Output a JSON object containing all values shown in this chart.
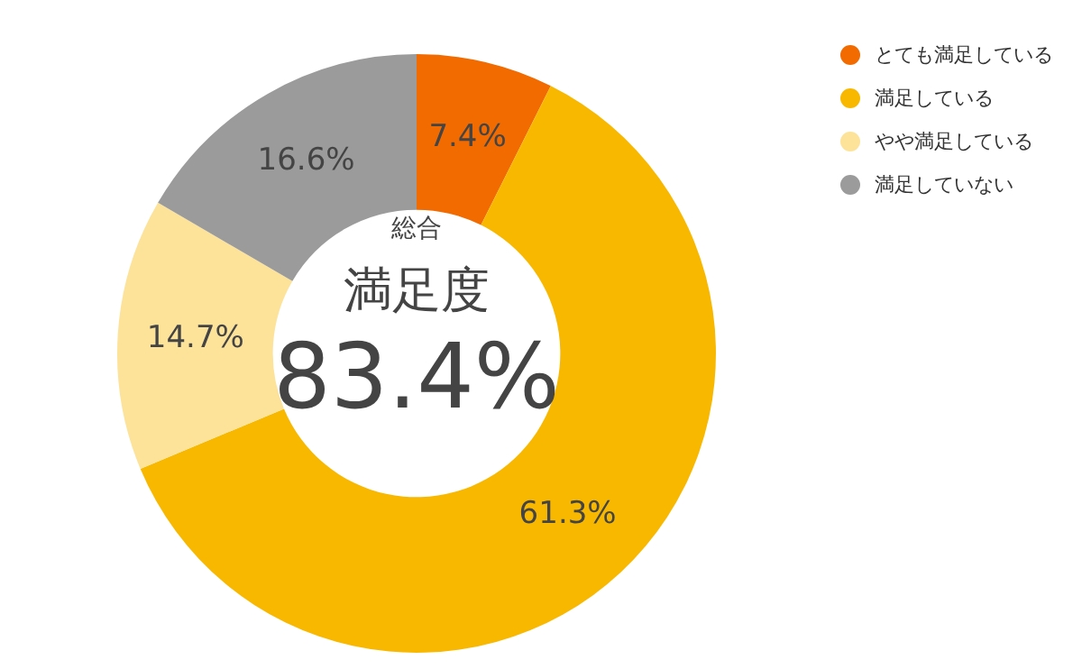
{
  "chart_data": {
    "type": "donut",
    "categories": [
      "とても満足している",
      "満足している",
      "やや満足している",
      "満足していない"
    ],
    "values": [
      7.4,
      61.3,
      14.7,
      16.6
    ],
    "colors": [
      "#f26b00",
      "#f9b800",
      "#fde39a",
      "#9b9b9b"
    ],
    "value_labels": [
      "7.4%",
      "61.3%",
      "14.7%",
      "16.6%"
    ],
    "annotations": [
      "総合",
      "満足度",
      "83.4%"
    ],
    "legend": "top right"
  }
}
